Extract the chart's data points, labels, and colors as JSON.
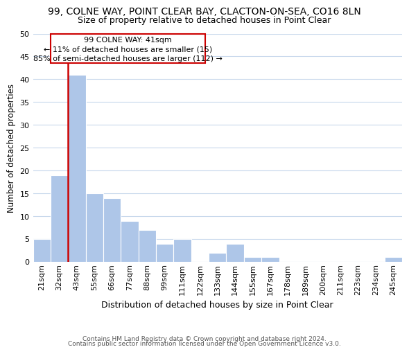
{
  "title": "99, COLNE WAY, POINT CLEAR BAY, CLACTON-ON-SEA, CO16 8LN",
  "subtitle": "Size of property relative to detached houses in Point Clear",
  "xlabel": "Distribution of detached houses by size in Point Clear",
  "ylabel": "Number of detached properties",
  "bar_labels": [
    "21sqm",
    "32sqm",
    "43sqm",
    "55sqm",
    "66sqm",
    "77sqm",
    "88sqm",
    "99sqm",
    "111sqm",
    "122sqm",
    "133sqm",
    "144sqm",
    "155sqm",
    "167sqm",
    "178sqm",
    "189sqm",
    "200sqm",
    "211sqm",
    "223sqm",
    "234sqm",
    "245sqm"
  ],
  "bar_values": [
    5,
    19,
    41,
    15,
    14,
    9,
    7,
    4,
    5,
    0,
    2,
    4,
    1,
    1,
    0,
    0,
    0,
    0,
    0,
    0,
    1
  ],
  "bar_color": "#aec6e8",
  "highlight_line_color": "#cc0000",
  "ylim": [
    0,
    50
  ],
  "yticks": [
    0,
    5,
    10,
    15,
    20,
    25,
    30,
    35,
    40,
    45,
    50
  ],
  "ann_line1": "99 COLNE WAY: 41sqm",
  "ann_line2": "← 11% of detached houses are smaller (15)",
  "ann_line3": "85% of semi-detached houses are larger (112) →",
  "footer_line1": "Contains HM Land Registry data © Crown copyright and database right 2024.",
  "footer_line2": "Contains public sector information licensed under the Open Government Licence v3.0.",
  "background_color": "#ffffff",
  "grid_color": "#c8d8ec",
  "title_fontsize": 10,
  "subtitle_fontsize": 9,
  "ylabel_fontsize": 8.5,
  "xlabel_fontsize": 9,
  "tick_fontsize": 8,
  "ann_fontsize": 8,
  "footer_fontsize": 6.5
}
